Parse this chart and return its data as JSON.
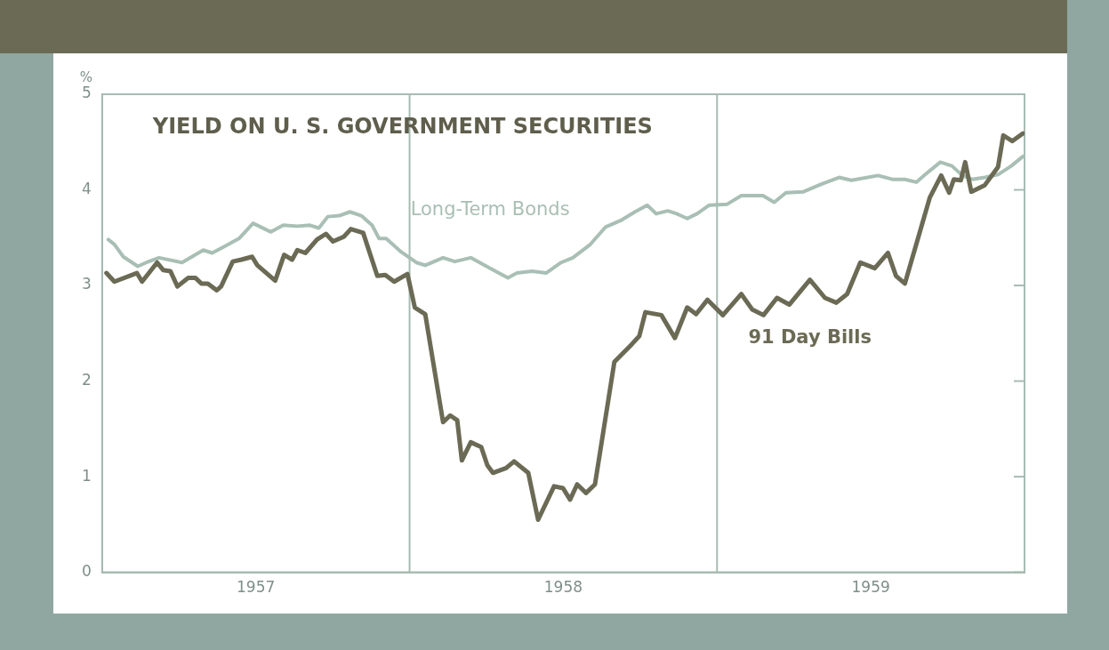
{
  "chart_data": {
    "type": "line",
    "title": "YIELD ON U. S. GOVERNMENT SECURITIES",
    "ylabel": "%",
    "xlim": [
      1957,
      1960
    ],
    "xticks": [
      {
        "value": 1957.5,
        "label": "1957"
      },
      {
        "value": 1958.5,
        "label": "1958"
      },
      {
        "value": 1959.5,
        "label": "1959"
      }
    ],
    "ylim": [
      0,
      5
    ],
    "yticks": [
      0,
      1,
      2,
      3,
      4,
      5
    ],
    "grid": false,
    "legend": false,
    "ref_lines": [
      {
        "axis": "x",
        "value": 1958,
        "color": "#a8bbb2"
      },
      {
        "axis": "x",
        "value": 1959,
        "color": "#a8bbb2"
      }
    ],
    "series": [
      {
        "name": "91 Day Bills",
        "color": "#6b6a55",
        "x": [
          1957.014,
          1957.04,
          1957.113,
          1957.13,
          1957.179,
          1957.199,
          1957.222,
          1957.245,
          1957.28,
          1957.303,
          1957.323,
          1957.344,
          1957.373,
          1957.387,
          1957.425,
          1957.453,
          1957.488,
          1957.505,
          1957.563,
          1957.592,
          1957.618,
          1957.635,
          1957.661,
          1957.699,
          1957.728,
          1957.751,
          1957.786,
          1957.809,
          1957.849,
          1957.895,
          1957.921,
          1957.95,
          1957.993,
          1958.017,
          1958.051,
          1958.109,
          1958.132,
          1958.155,
          1958.17,
          1958.199,
          1958.233,
          1958.253,
          1958.271,
          1958.314,
          1958.34,
          1958.386,
          1958.418,
          1958.47,
          1958.499,
          1958.522,
          1958.545,
          1958.574,
          1958.603,
          1958.666,
          1958.724,
          1958.747,
          1958.767,
          1958.819,
          1958.863,
          1958.903,
          1958.932,
          1958.969,
          1959.019,
          1959.079,
          1959.114,
          1959.151,
          1959.195,
          1959.235,
          1959.302,
          1959.351,
          1959.388,
          1959.423,
          1959.466,
          1959.513,
          1959.556,
          1959.582,
          1959.611,
          1959.692,
          1959.729,
          1959.755,
          1959.77,
          1959.793,
          1959.807,
          1959.827,
          1959.871,
          1959.914,
          1959.931,
          1959.96,
          1959.995
        ],
        "values": [
          3.13,
          3.04,
          3.13,
          3.04,
          3.24,
          3.16,
          3.15,
          2.99,
          3.08,
          3.08,
          3.02,
          3.02,
          2.95,
          2.99,
          3.25,
          3.27,
          3.3,
          3.21,
          3.05,
          3.32,
          3.27,
          3.37,
          3.34,
          3.48,
          3.54,
          3.46,
          3.51,
          3.59,
          3.55,
          3.1,
          3.11,
          3.04,
          3.12,
          2.77,
          2.7,
          1.57,
          1.64,
          1.59,
          1.17,
          1.36,
          1.31,
          1.12,
          1.04,
          1.09,
          1.16,
          1.04,
          0.55,
          0.9,
          0.88,
          0.76,
          0.92,
          0.83,
          0.92,
          2.2,
          2.39,
          2.47,
          2.72,
          2.69,
          2.45,
          2.77,
          2.7,
          2.85,
          2.69,
          2.91,
          2.75,
          2.69,
          2.87,
          2.8,
          3.06,
          2.87,
          2.82,
          2.91,
          3.24,
          3.18,
          3.34,
          3.1,
          3.02,
          3.92,
          4.15,
          3.97,
          4.11,
          4.1,
          4.29,
          3.98,
          4.05,
          4.24,
          4.57,
          4.51,
          4.59
        ]
      },
      {
        "name": "Long-Term Bonds",
        "color": "#a9bfb5",
        "x": [
          1957.02,
          1957.04,
          1957.069,
          1957.116,
          1957.144,
          1957.185,
          1957.26,
          1957.329,
          1957.358,
          1957.445,
          1957.491,
          1957.549,
          1957.589,
          1957.635,
          1957.676,
          1957.705,
          1957.734,
          1957.771,
          1957.806,
          1957.843,
          1957.878,
          1957.901,
          1957.924,
          1957.973,
          1958.022,
          1958.051,
          1958.109,
          1958.147,
          1958.199,
          1958.262,
          1958.32,
          1958.349,
          1958.398,
          1958.444,
          1958.493,
          1958.531,
          1958.588,
          1958.637,
          1958.687,
          1958.733,
          1958.773,
          1958.802,
          1958.84,
          1958.869,
          1958.903,
          1958.935,
          1958.975,
          1959.033,
          1959.079,
          1959.149,
          1959.186,
          1959.224,
          1959.281,
          1959.339,
          1959.397,
          1959.437,
          1959.524,
          1959.57,
          1959.611,
          1959.648,
          1959.677,
          1959.726,
          1959.764,
          1959.798,
          1959.83,
          1959.871,
          1959.914,
          1959.957,
          1959.995
        ],
        "values": [
          3.48,
          3.43,
          3.3,
          3.2,
          3.24,
          3.29,
          3.24,
          3.37,
          3.34,
          3.49,
          3.65,
          3.56,
          3.63,
          3.62,
          3.63,
          3.6,
          3.72,
          3.73,
          3.77,
          3.73,
          3.63,
          3.49,
          3.49,
          3.35,
          3.24,
          3.21,
          3.29,
          3.25,
          3.29,
          3.18,
          3.08,
          3.13,
          3.15,
          3.13,
          3.24,
          3.29,
          3.43,
          3.61,
          3.68,
          3.77,
          3.84,
          3.75,
          3.78,
          3.75,
          3.7,
          3.75,
          3.84,
          3.85,
          3.94,
          3.94,
          3.87,
          3.97,
          3.98,
          4.06,
          4.13,
          4.1,
          4.15,
          4.11,
          4.11,
          4.08,
          4.16,
          4.29,
          4.25,
          4.15,
          4.11,
          4.13,
          4.16,
          4.25,
          4.35
        ]
      }
    ]
  }
}
